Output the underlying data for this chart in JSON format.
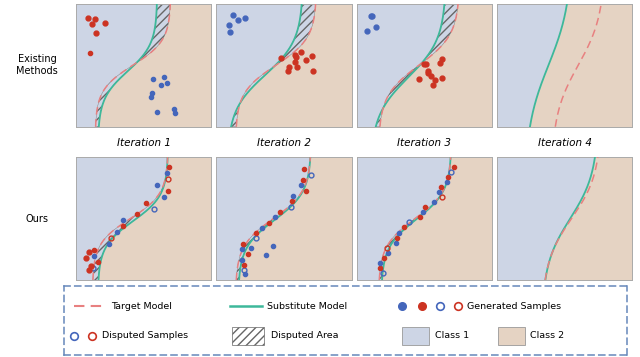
{
  "fig_width": 6.4,
  "fig_height": 3.57,
  "dpi": 100,
  "class1_color": "#cdd5e5",
  "class2_color": "#e5d3c3",
  "hatch_color": "#666666",
  "target_line_color": "#e88080",
  "substitute_line_color": "#3db89a",
  "blue_dot_color": "#4466bb",
  "red_dot_color": "#cc3322",
  "legend_border_color": "#6688bb",
  "row_labels": [
    "Existing\nMethods",
    "Ours"
  ],
  "col_labels": [
    "Iteration 1",
    "Iteration 2",
    "Iteration 3",
    "Iteration 4"
  ]
}
